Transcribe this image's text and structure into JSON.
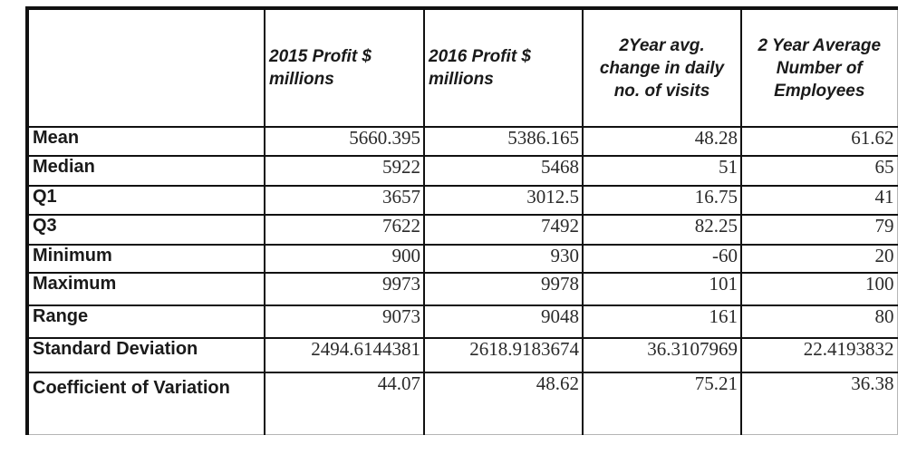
{
  "table": {
    "columns": [
      "",
      "2015 Profit $ millions",
      "2016 Profit $ millions",
      "2Year avg. change in daily no. of visits",
      "2 Year Average Number of Employees"
    ],
    "rows": [
      {
        "label": "Mean",
        "values": [
          "5660.395",
          "5386.165",
          "48.28",
          "61.62"
        ]
      },
      {
        "label": "Median",
        "values": [
          "5922",
          "5468",
          "51",
          "65"
        ]
      },
      {
        "label": "Q1",
        "values": [
          "3657",
          "3012.5",
          "16.75",
          "41"
        ]
      },
      {
        "label": "Q3",
        "values": [
          "7622",
          "7492",
          "82.25",
          "79"
        ]
      },
      {
        "label": "Minimum",
        "values": [
          "900",
          "930",
          "-60",
          "20"
        ]
      },
      {
        "label": "Maximum",
        "values": [
          "9973",
          "9978",
          "101",
          "100"
        ]
      },
      {
        "label": "Range",
        "values": [
          "9073",
          "9048",
          "161",
          "80"
        ]
      },
      {
        "label": "Standard Deviation",
        "values": [
          "2494.6144381",
          "2618.9183674",
          "36.3107969",
          "22.4193832"
        ]
      },
      {
        "label": "Coefficient of Variation",
        "values": [
          "44.07",
          "48.62",
          "75.21",
          "36.38"
        ]
      }
    ]
  }
}
